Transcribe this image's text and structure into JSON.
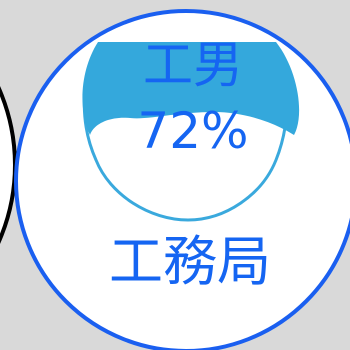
{
  "gauge": {
    "category_label": "工男",
    "percentage_label": "72%",
    "value": 72,
    "unit": "%",
    "caption": "工務局"
  },
  "colors": {
    "background": "#d9d9d9",
    "circle_fill": "#ffffff",
    "circle_border": "#1a5ff0",
    "dark_ring": "#000000",
    "fill_top": "#3aa9dd",
    "fill_bottom": "#1d9fd8",
    "text": "#1565f2"
  }
}
